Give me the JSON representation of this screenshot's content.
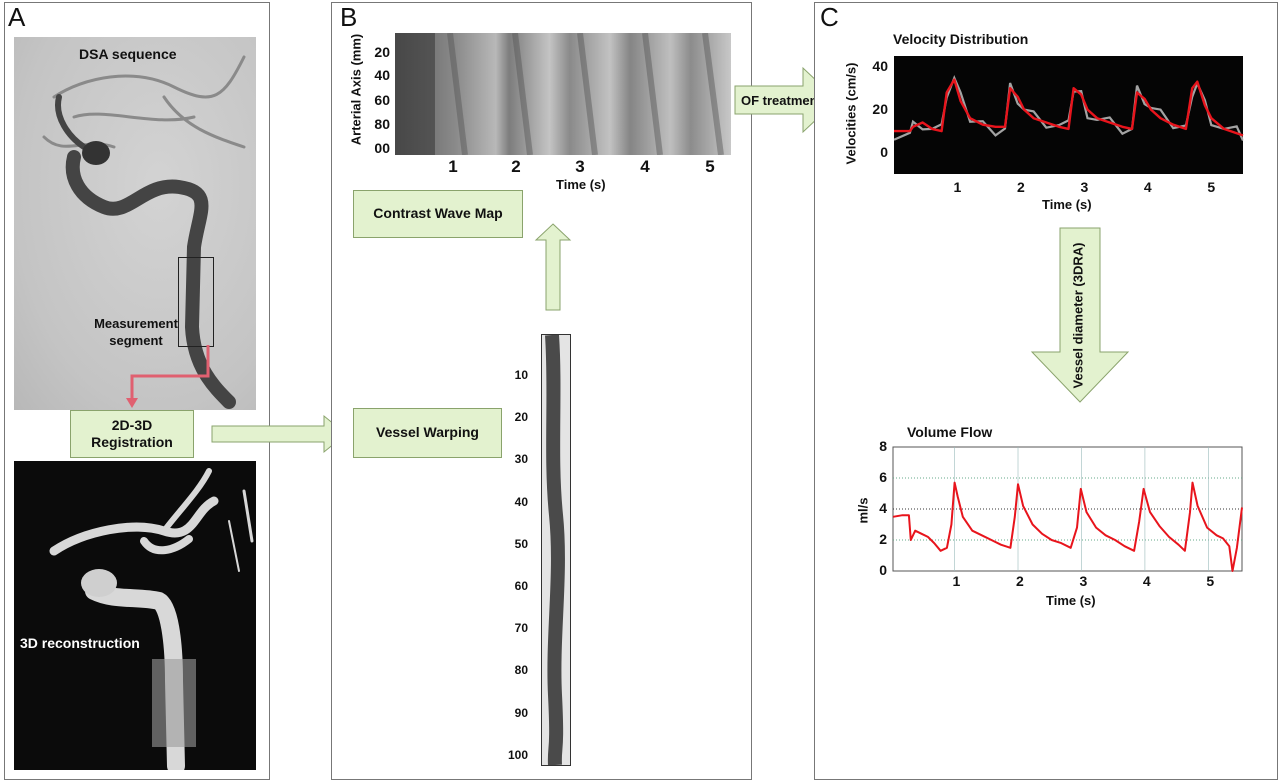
{
  "panel_a": {
    "letter": "A",
    "dsa_title": "DSA sequence",
    "measurement_label": "Measurement segment",
    "registration_label": "2D-3D Registration",
    "reconstruction_label": "3D reconstruction"
  },
  "panel_b": {
    "letter": "B",
    "wave_map": {
      "ylabel": "Arterial Axis (mm)",
      "yticks": [
        "20",
        "40",
        "60",
        "80",
        "00"
      ],
      "xticks": [
        "1",
        "2",
        "3",
        "4",
        "5"
      ],
      "xlabel": "Time (s)"
    },
    "contrast_wave_map_label": "Contrast Wave Map",
    "vessel_warping_label": "Vessel Warping",
    "strip_ticks": [
      "10",
      "20",
      "30",
      "40",
      "50",
      "60",
      "70",
      "80",
      "90",
      "100"
    ]
  },
  "panel_c": {
    "letter": "C",
    "of_treatment_label": "OF treatment",
    "vessel_diameter_label": "Vessel diameter (3DRA)"
  },
  "colors": {
    "box_fill": "#e3f2cf",
    "box_border": "#8aa36c",
    "registration_line": "#e06070",
    "flow_line": "#e8141c"
  },
  "chart_data": [
    {
      "type": "line",
      "title": "Velocity Distribution",
      "xlabel": "Time (s)",
      "ylabel": "Velocities (cm/s)",
      "xlim": [
        0,
        5.5
      ],
      "ylim": [
        -10,
        45
      ],
      "xticks": [
        "1",
        "2",
        "3",
        "4",
        "5"
      ],
      "yticks": [
        "0",
        "20",
        "40"
      ],
      "background": "black",
      "series": [
        {
          "color": "#e8141c",
          "x": [
            0,
            0.25,
            0.3,
            0.45,
            0.6,
            0.75,
            0.83,
            0.95,
            1.05,
            1.2,
            1.4,
            1.6,
            1.75,
            1.83,
            1.95,
            2.05,
            2.2,
            2.4,
            2.6,
            2.75,
            2.83,
            2.95,
            3.05,
            3.2,
            3.4,
            3.6,
            3.75,
            3.83,
            3.95,
            4.05,
            4.2,
            4.4,
            4.6,
            4.7,
            4.78,
            4.9,
            5.0,
            5.2,
            5.4,
            5.5
          ],
          "y": [
            10,
            10,
            12,
            14,
            11,
            10,
            28,
            34,
            24,
            16,
            13,
            12,
            12,
            30,
            26,
            20,
            16,
            14,
            12,
            11,
            30,
            27,
            20,
            16,
            14,
            12,
            11,
            28,
            25,
            20,
            16,
            13,
            11,
            30,
            33,
            22,
            16,
            11,
            9,
            8
          ]
        }
      ]
    },
    {
      "type": "line",
      "title": "Volume Flow",
      "xlabel": "Time (s)",
      "ylabel": "ml/s",
      "xlim": [
        0,
        5.5
      ],
      "ylim": [
        0,
        8
      ],
      "xticks": [
        "1",
        "2",
        "3",
        "4",
        "5"
      ],
      "yticks": [
        "0",
        "2",
        "4",
        "6",
        "8"
      ],
      "series": [
        {
          "color": "#e8141c",
          "x": [
            0,
            0.15,
            0.25,
            0.28,
            0.35,
            0.45,
            0.55,
            0.65,
            0.75,
            0.85,
            0.92,
            0.97,
            1.02,
            1.1,
            1.25,
            1.4,
            1.55,
            1.7,
            1.85,
            1.92,
            1.97,
            2.05,
            2.2,
            2.35,
            2.5,
            2.65,
            2.8,
            2.9,
            2.96,
            3.05,
            3.2,
            3.35,
            3.5,
            3.65,
            3.8,
            3.88,
            3.95,
            4.05,
            4.2,
            4.35,
            4.5,
            4.6,
            4.68,
            4.72,
            4.8,
            4.95,
            5.1,
            5.2,
            5.3,
            5.35,
            5.42,
            5.5
          ],
          "y": [
            3.5,
            3.6,
            3.6,
            2.0,
            2.6,
            2.4,
            2.2,
            1.8,
            1.3,
            1.5,
            3.0,
            5.7,
            4.8,
            3.5,
            2.6,
            2.3,
            2.0,
            1.7,
            1.5,
            3.5,
            5.6,
            4.2,
            3.0,
            2.4,
            2.0,
            1.8,
            1.5,
            2.8,
            5.3,
            3.8,
            2.8,
            2.3,
            2.0,
            1.6,
            1.3,
            3.2,
            5.3,
            3.8,
            2.9,
            2.2,
            1.7,
            1.3,
            3.8,
            5.7,
            4.2,
            2.8,
            2.3,
            2.1,
            1.6,
            0.0,
            1.5,
            4.1
          ]
        }
      ]
    }
  ]
}
